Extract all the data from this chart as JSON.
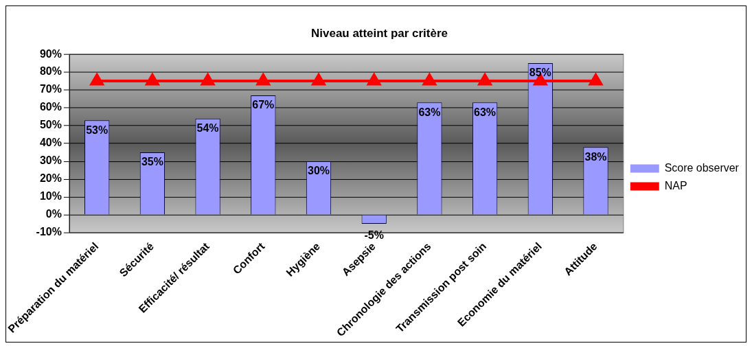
{
  "chart_data": {
    "type": "bar",
    "title": "Niveau atteint par critère",
    "categories": [
      "Préparation du matériel",
      "Sécurité",
      "Efficacité/ résultat",
      "Confort",
      "Hygiène",
      "Asepsie",
      "Chronologie des actions",
      "Transmission post soin",
      "Economie du matériel",
      "Attitude"
    ],
    "series": [
      {
        "name": "Score observer",
        "color": "#9999ff",
        "values": [
          53,
          35,
          54,
          67,
          30,
          -5,
          63,
          63,
          85,
          38
        ],
        "value_labels": [
          "53%",
          "35%",
          "54%",
          "67%",
          "30%",
          "-5%",
          "63%",
          "63%",
          "85%",
          "38%"
        ]
      },
      {
        "name": "NAP",
        "type": "line",
        "color": "#ff0000",
        "values": [
          75,
          75,
          75,
          75,
          75,
          75,
          75,
          75,
          75,
          75
        ]
      }
    ],
    "ylim": [
      -10,
      90
    ],
    "yticks": [
      {
        "value": -10,
        "label": "-10%"
      },
      {
        "value": 0,
        "label": "0%"
      },
      {
        "value": 10,
        "label": "10%"
      },
      {
        "value": 20,
        "label": "20%"
      },
      {
        "value": 30,
        "label": "30%"
      },
      {
        "value": 40,
        "label": "40%"
      },
      {
        "value": 50,
        "label": "50%"
      },
      {
        "value": 60,
        "label": "60%"
      },
      {
        "value": 70,
        "label": "70%"
      },
      {
        "value": 80,
        "label": "80%"
      },
      {
        "value": 90,
        "label": "90%"
      }
    ],
    "grid": "y",
    "legend": "right",
    "marker": "triangle",
    "line_style": "solid"
  }
}
